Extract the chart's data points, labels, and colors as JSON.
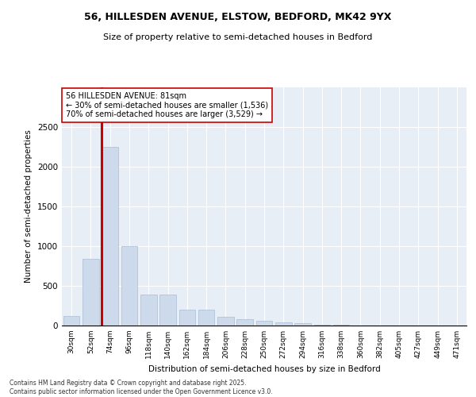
{
  "title1": "56, HILLESDEN AVENUE, ELSTOW, BEDFORD, MK42 9YX",
  "title2": "Size of property relative to semi-detached houses in Bedford",
  "xlabel": "Distribution of semi-detached houses by size in Bedford",
  "ylabel": "Number of semi-detached properties",
  "bar_color": "#ccdaeb",
  "bar_edge_color": "#aabdd4",
  "background_color": "#e8eef5",
  "grid_color": "#ffffff",
  "categories": [
    "30sqm",
    "52sqm",
    "74sqm",
    "96sqm",
    "118sqm",
    "140sqm",
    "162sqm",
    "184sqm",
    "206sqm",
    "228sqm",
    "250sqm",
    "272sqm",
    "294sqm",
    "316sqm",
    "338sqm",
    "360sqm",
    "382sqm",
    "405sqm",
    "427sqm",
    "449sqm",
    "471sqm"
  ],
  "values": [
    120,
    840,
    2250,
    1000,
    390,
    390,
    200,
    200,
    110,
    85,
    65,
    45,
    30,
    10,
    8,
    5,
    5,
    4,
    3,
    2,
    2
  ],
  "property_bin_index": 2,
  "property_label": "56 HILLESDEN AVENUE: 81sqm",
  "smaller_pct": 30,
  "smaller_count": 1536,
  "larger_pct": 70,
  "larger_count": 3529,
  "vline_color": "#cc0000",
  "annotation_box_edgecolor": "#cc0000",
  "ylim": [
    0,
    3000
  ],
  "yticks": [
    0,
    500,
    1000,
    1500,
    2000,
    2500
  ],
  "footer1": "Contains HM Land Registry data © Crown copyright and database right 2025.",
  "footer2": "Contains public sector information licensed under the Open Government Licence v3.0."
}
